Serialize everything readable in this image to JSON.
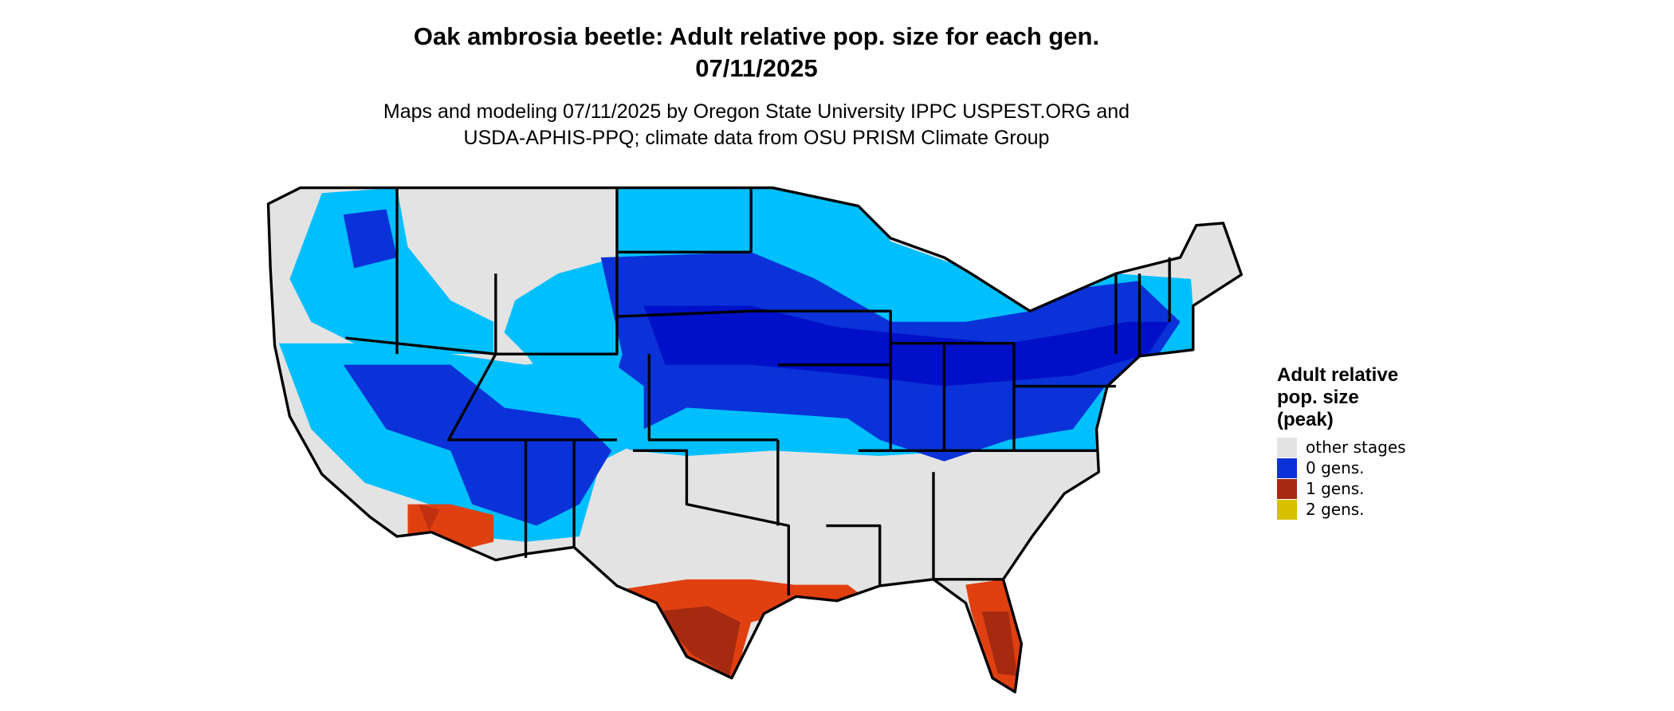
{
  "header": {
    "title": [
      "Oak ambrosia beetle: Adult relative pop. size for each gen.",
      "07/11/2025"
    ],
    "subtitle": [
      "Maps and modeling 07/11/2025 by Oregon State University IPPC USPEST.ORG and",
      "USDA-APHIS-PPQ; climate data from OSU PRISM Climate Group"
    ]
  },
  "legend": {
    "title": [
      "Adult relative",
      "pop. size",
      "(peak)"
    ],
    "items": [
      {
        "label": "other stages",
        "color": "#e3e3e3"
      },
      {
        "label": "0 gens.",
        "color": "#0a32d8"
      },
      {
        "label": "1 gens.",
        "color": "#a52a10"
      },
      {
        "label": "2 gens.",
        "color": "#d8c000"
      }
    ]
  }
}
